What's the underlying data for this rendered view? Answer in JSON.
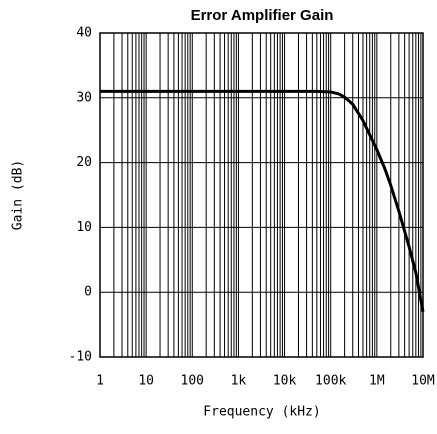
{
  "chart_data": {
    "type": "line",
    "title": "Error Amplifier Gain",
    "x_label": "Frequency (kHz)",
    "y_label": "Gain (dB)",
    "x": [
      1,
      10,
      100,
      1000,
      10000,
      50000,
      100000,
      150000,
      200000,
      300000,
      500000,
      700000,
      1000000,
      1500000,
      2000000,
      3000000,
      5000000,
      7000000,
      10000000
    ],
    "series": [
      {
        "name": "Gain",
        "color": "#000000",
        "values": [
          31,
          31,
          31,
          31,
          31,
          31,
          30.9,
          30.6,
          30.1,
          29,
          26.5,
          24.3,
          22,
          19,
          16.5,
          12.5,
          7,
          3,
          -3
        ]
      }
    ],
    "x_log": true,
    "xlim": [
      1,
      10000000
    ],
    "xticks": [
      1,
      10,
      100,
      {
        "value": 1000,
        "label": "1k"
      },
      {
        "value": 10000,
        "label": "10k"
      },
      {
        "value": 100000,
        "label": "100k"
      },
      {
        "value": 1000000,
        "label": "1M"
      },
      {
        "value": 10000000,
        "label": "10M"
      }
    ],
    "ylim": [
      -10,
      40
    ],
    "yticks": [
      40,
      30,
      20,
      10,
      0,
      -10
    ],
    "grid": true,
    "minor_grid": true
  }
}
